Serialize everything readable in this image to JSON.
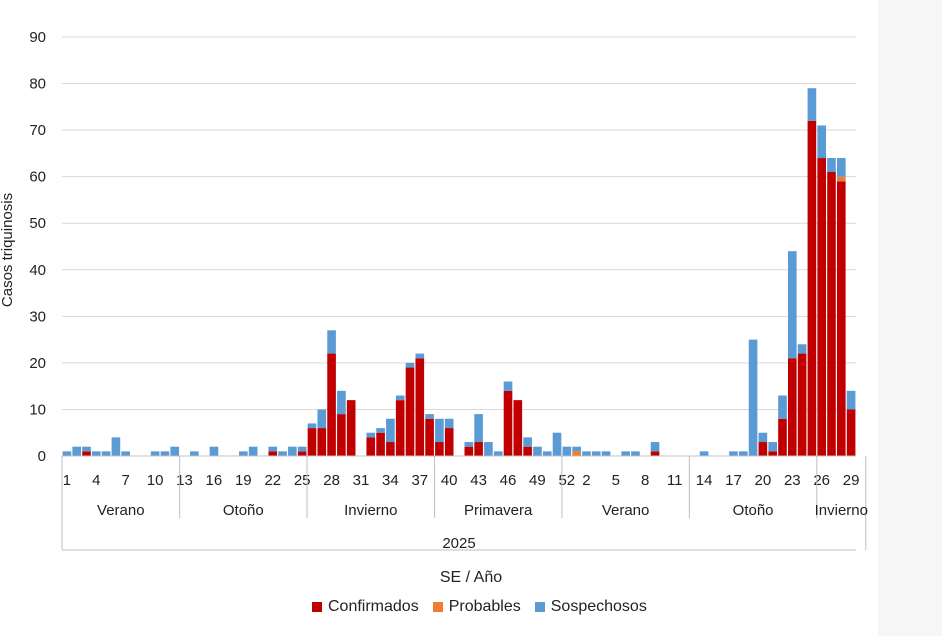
{
  "chart_data": {
    "type": "bar",
    "stacked": true,
    "title": "",
    "ylabel": "Casos triquinosis",
    "xlabel": "SE / Año",
    "ylim": [
      0,
      90
    ],
    "yticks": [
      0,
      10,
      20,
      30,
      40,
      50,
      60,
      70,
      80,
      90
    ],
    "grid": true,
    "legend_position": "bottom",
    "colors": {
      "confirmados": "#c00000",
      "probables": "#ed7d31",
      "sospechosos": "#5b9bd5"
    },
    "year_label": "2025",
    "tick_labels": [
      {
        "idx": 0,
        "label": "1"
      },
      {
        "idx": 3,
        "label": "4"
      },
      {
        "idx": 6,
        "label": "7"
      },
      {
        "idx": 9,
        "label": "10"
      },
      {
        "idx": 12,
        "label": "13"
      },
      {
        "idx": 15,
        "label": "16"
      },
      {
        "idx": 18,
        "label": "19"
      },
      {
        "idx": 21,
        "label": "22"
      },
      {
        "idx": 24,
        "label": "25"
      },
      {
        "idx": 27,
        "label": "28"
      },
      {
        "idx": 30,
        "label": "31"
      },
      {
        "idx": 33,
        "label": "34"
      },
      {
        "idx": 36,
        "label": "37"
      },
      {
        "idx": 39,
        "label": "40"
      },
      {
        "idx": 42,
        "label": "43"
      },
      {
        "idx": 45,
        "label": "46"
      },
      {
        "idx": 48,
        "label": "49"
      },
      {
        "idx": 51,
        "label": "52"
      },
      {
        "idx": 53,
        "label": "2"
      },
      {
        "idx": 56,
        "label": "5"
      },
      {
        "idx": 59,
        "label": "8"
      },
      {
        "idx": 62,
        "label": "11"
      },
      {
        "idx": 65,
        "label": "14"
      },
      {
        "idx": 68,
        "label": "17"
      },
      {
        "idx": 71,
        "label": "20"
      },
      {
        "idx": 74,
        "label": "23"
      },
      {
        "idx": 77,
        "label": "26"
      },
      {
        "idx": 80,
        "label": "29"
      }
    ],
    "seasons": [
      {
        "label": "Verano",
        "start": 0,
        "end": 11
      },
      {
        "label": "Otoño",
        "start": 12,
        "end": 24
      },
      {
        "label": "Invierno",
        "start": 25,
        "end": 37
      },
      {
        "label": "Primavera",
        "start": 38,
        "end": 50
      },
      {
        "label": "Verano",
        "start": 51,
        "end": 63
      },
      {
        "label": "Otoño",
        "start": 64,
        "end": 76
      },
      {
        "label": "Invierno",
        "start": 77,
        "end": 81
      }
    ],
    "series": [
      {
        "name": "Confirmados",
        "values": [
          0,
          0,
          1,
          0,
          0,
          0,
          0,
          0,
          0,
          0,
          0,
          0,
          0,
          0,
          0,
          0,
          0,
          0,
          0,
          0,
          0,
          1,
          0,
          0,
          1,
          6,
          6,
          22,
          9,
          12,
          0,
          4,
          5,
          3,
          12,
          19,
          21,
          8,
          3,
          6,
          0,
          2,
          3,
          0,
          0,
          14,
          12,
          2,
          0,
          0,
          0,
          0,
          0,
          0,
          0,
          0,
          0,
          0,
          0,
          0,
          1,
          0,
          0,
          0,
          0,
          0,
          0,
          0,
          0,
          0,
          0,
          3,
          1,
          8,
          21,
          22,
          72,
          64,
          61,
          59,
          10
        ]
      },
      {
        "name": "Probables",
        "values": [
          0,
          0,
          0,
          0,
          0,
          0,
          0,
          0,
          0,
          0,
          0,
          0,
          0,
          0,
          0,
          0,
          0,
          0,
          0,
          0,
          0,
          0,
          0,
          0,
          0,
          0,
          0,
          0,
          0,
          0,
          0,
          0,
          0,
          0,
          0,
          0,
          0,
          0,
          0,
          0,
          0,
          0,
          0,
          0,
          0,
          0,
          0,
          0,
          0,
          0,
          0,
          0,
          1,
          0,
          0,
          0,
          0,
          0,
          0,
          0,
          0,
          0,
          0,
          0,
          0,
          0,
          0,
          0,
          0,
          0,
          0,
          0,
          0,
          0,
          0,
          0,
          0,
          0,
          0,
          1,
          0
        ]
      },
      {
        "name": "Sospechosos",
        "values": [
          1,
          2,
          1,
          1,
          1,
          4,
          1,
          0,
          0,
          1,
          1,
          2,
          0,
          1,
          0,
          2,
          0,
          0,
          1,
          2,
          0,
          1,
          1,
          2,
          1,
          1,
          4,
          5,
          5,
          0,
          0,
          1,
          1,
          5,
          1,
          1,
          1,
          1,
          5,
          2,
          0,
          1,
          6,
          3,
          1,
          2,
          0,
          2,
          2,
          1,
          5,
          2,
          1,
          1,
          1,
          1,
          0,
          1,
          1,
          0,
          2,
          0,
          0,
          0,
          0,
          1,
          0,
          0,
          1,
          1,
          25,
          2,
          2,
          5,
          23,
          2,
          7,
          7,
          3,
          4,
          4
        ]
      }
    ]
  },
  "legend": {
    "confirmados": "Confirmados",
    "probables": "Probables",
    "sospechosos": "Sospechosos"
  }
}
